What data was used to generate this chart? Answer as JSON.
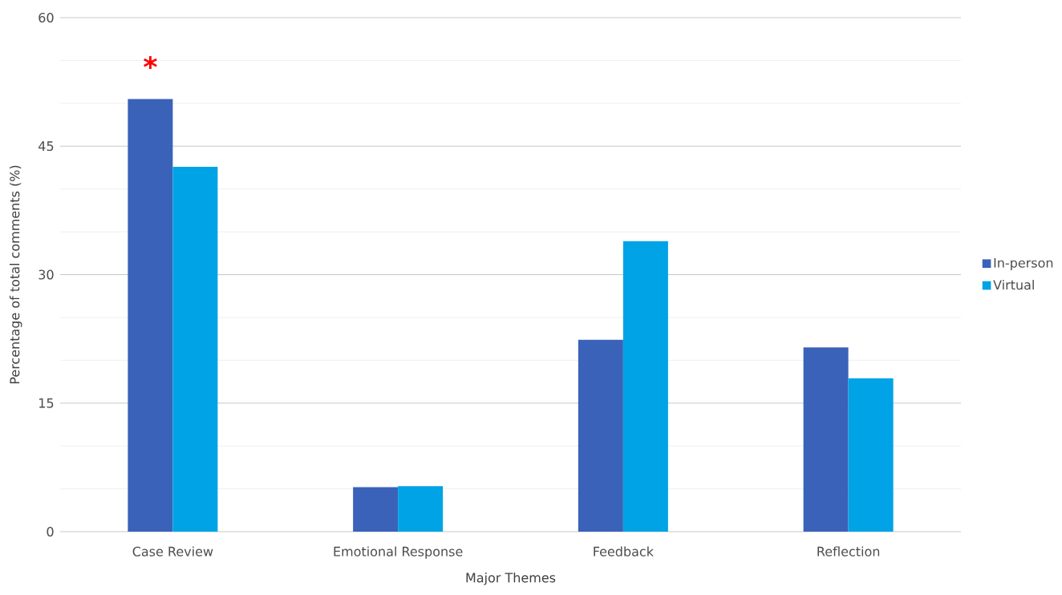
{
  "chart_data": {
    "type": "bar",
    "xlabel": "Major Themes",
    "ylabel": "Percentage of total comments (%)",
    "categories": [
      "Case Review",
      "Emotional Response",
      "Feedback",
      "Reflection"
    ],
    "series": [
      {
        "name": "In-person",
        "color": "#3a62b9",
        "values": [
          50.5,
          5.2,
          22.4,
          21.5
        ]
      },
      {
        "name": "Virtual",
        "color": "#00a3e6",
        "values": [
          42.6,
          5.3,
          33.9,
          17.9
        ]
      }
    ],
    "ylim": [
      0,
      60
    ],
    "yticks": [
      0,
      {
        "value": 5,
        "label": null
      },
      {
        "value": 10,
        "label": null
      },
      15,
      {
        "value": 20,
        "label": null
      },
      {
        "value": 25,
        "label": null
      },
      30,
      {
        "value": 35,
        "label": null
      },
      {
        "value": 40,
        "label": null
      },
      45,
      {
        "value": 50,
        "label": null
      },
      {
        "value": 55,
        "label": null
      },
      60
    ],
    "grid": "y",
    "legend": "right",
    "annotations": [
      "*"
    ]
  }
}
